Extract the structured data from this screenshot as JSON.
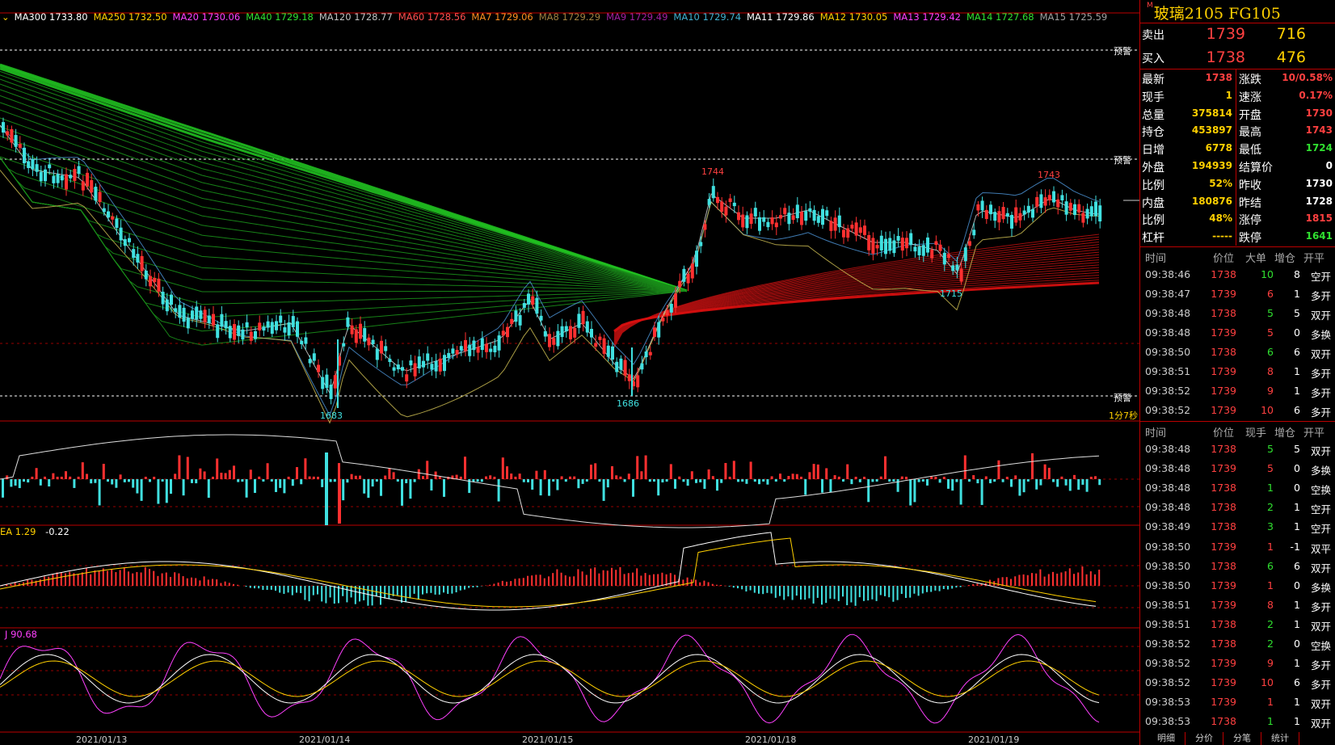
{
  "ma_legend": [
    {
      "label": "MA300 1733.80",
      "color": "#ffffff"
    },
    {
      "label": "MA250 1732.50",
      "color": "#ffd000"
    },
    {
      "label": "MA20 1730.06",
      "color": "#ff40ff"
    },
    {
      "label": "MA40 1729.18",
      "color": "#30e030"
    },
    {
      "label": "MA120 1728.77",
      "color": "#c0c0c0"
    },
    {
      "label": "MA60 1728.56",
      "color": "#ff5050"
    },
    {
      "label": "MA7 1729.06",
      "color": "#ff9020"
    },
    {
      "label": "MA8 1729.29",
      "color": "#a08040"
    },
    {
      "label": "MA9 1729.49",
      "color": "#a020a0"
    },
    {
      "label": "MA10 1729.74",
      "color": "#40b0d0"
    },
    {
      "label": "MA11 1729.86",
      "color": "#ffffff"
    },
    {
      "label": "MA12 1730.05",
      "color": "#ffd000"
    },
    {
      "label": "MA13 1729.42",
      "color": "#ff40ff"
    },
    {
      "label": "MA14 1727.68",
      "color": "#30e030"
    },
    {
      "label": "MA15 1725.59",
      "color": "#a0a0a0"
    }
  ],
  "warn_label": "预警",
  "price_marks": {
    "high1": "1744",
    "high2": "1743",
    "low1": "1683",
    "low2": "1686",
    "low3": "1715"
  },
  "period_label": "1分7秒",
  "macd_label": {
    "prefix": "EA",
    "value": "1.29",
    "value2": "-0.22"
  },
  "kdj_label": {
    "prefix": "J",
    "value": "90.68"
  },
  "dates": [
    "2021/01/13",
    "2021/01/14",
    "2021/01/15",
    "2021/01/18",
    "2021/01/19"
  ],
  "quote": {
    "prefix": "M",
    "title": "玻璃2105  FG105",
    "sell": {
      "label": "卖出",
      "price": "1739",
      "volume": "716"
    },
    "buy": {
      "label": "买入",
      "price": "1738",
      "volume": "476"
    },
    "left_stats": [
      {
        "k": "最新",
        "v": "1738",
        "color": "#ff4040"
      },
      {
        "k": "现手",
        "v": "1",
        "color": "#ffd000"
      },
      {
        "k": "总量",
        "v": "375814",
        "color": "#ffd000"
      },
      {
        "k": "持仓",
        "v": "453897",
        "color": "#ffd000"
      },
      {
        "k": "日增",
        "v": "6778",
        "color": "#ffd000"
      },
      {
        "k": "外盘",
        "v": "194939",
        "color": "#ffd000"
      },
      {
        "k": "比例",
        "v": "52%",
        "color": "#ffd000"
      },
      {
        "k": "内盘",
        "v": "180876",
        "color": "#ffd000"
      },
      {
        "k": "比例",
        "v": "48%",
        "color": "#ffd000"
      },
      {
        "k": "杠杆",
        "v": "-----",
        "color": "#ffd000"
      }
    ],
    "right_stats": [
      {
        "k": "涨跌",
        "v": "10/0.58%",
        "color": "#ff4040"
      },
      {
        "k": "速涨",
        "v": "0.17%",
        "color": "#ff4040"
      },
      {
        "k": "开盘",
        "v": "1730",
        "color": "#ff4040"
      },
      {
        "k": "最高",
        "v": "1743",
        "color": "#ff4040"
      },
      {
        "k": "最低",
        "v": "1724",
        "color": "#30e030"
      },
      {
        "k": "结算价",
        "v": "0",
        "color": "#ffffff"
      },
      {
        "k": "昨收",
        "v": "1730",
        "color": "#ffffff"
      },
      {
        "k": "昨结",
        "v": "1728",
        "color": "#ffffff"
      },
      {
        "k": "涨停",
        "v": "1815",
        "color": "#ff4040"
      },
      {
        "k": "跌停",
        "v": "1641",
        "color": "#30e030"
      }
    ]
  },
  "trades_header_big": {
    "time": "时间",
    "price": "价位",
    "big": "大单",
    "inc": "增仓",
    "type": "开平"
  },
  "trades_big": [
    {
      "time": "09:38:46",
      "price": "1738",
      "big": "10",
      "inc": "8",
      "type": "空开",
      "pc": "#ff4040",
      "bc": "#30e030"
    },
    {
      "time": "09:38:47",
      "price": "1739",
      "big": "6",
      "inc": "1",
      "type": "多开",
      "pc": "#ff4040",
      "bc": "#ff4040"
    },
    {
      "time": "09:38:48",
      "price": "1738",
      "big": "5",
      "inc": "5",
      "type": "双开",
      "pc": "#ff4040",
      "bc": "#30e030"
    },
    {
      "time": "09:38:48",
      "price": "1739",
      "big": "5",
      "inc": "0",
      "type": "多换",
      "pc": "#ff4040",
      "bc": "#ff4040"
    },
    {
      "time": "09:38:50",
      "price": "1738",
      "big": "6",
      "inc": "6",
      "type": "双开",
      "pc": "#ff4040",
      "bc": "#30e030"
    },
    {
      "time": "09:38:51",
      "price": "1739",
      "big": "8",
      "inc": "1",
      "type": "多开",
      "pc": "#ff4040",
      "bc": "#ff4040"
    },
    {
      "time": "09:38:52",
      "price": "1739",
      "big": "9",
      "inc": "1",
      "type": "多开",
      "pc": "#ff4040",
      "bc": "#ff4040"
    },
    {
      "time": "09:38:52",
      "price": "1739",
      "big": "10",
      "inc": "6",
      "type": "多开",
      "pc": "#ff4040",
      "bc": "#ff4040"
    }
  ],
  "trades_header": {
    "time": "时间",
    "price": "价位",
    "big": "现手",
    "inc": "增仓",
    "type": "开平"
  },
  "trades": [
    {
      "time": "09:38:48",
      "price": "1738",
      "big": "5",
      "inc": "5",
      "type": "双开",
      "pc": "#ff4040",
      "bc": "#30e030"
    },
    {
      "time": "09:38:48",
      "price": "1739",
      "big": "5",
      "inc": "0",
      "type": "多换",
      "pc": "#ff4040",
      "bc": "#ff4040"
    },
    {
      "time": "09:38:48",
      "price": "1738",
      "big": "1",
      "inc": "0",
      "type": "空换",
      "pc": "#ff4040",
      "bc": "#30e030"
    },
    {
      "time": "09:38:48",
      "price": "1738",
      "big": "2",
      "inc": "1",
      "type": "空开",
      "pc": "#ff4040",
      "bc": "#30e030"
    },
    {
      "time": "09:38:49",
      "price": "1738",
      "big": "3",
      "inc": "1",
      "type": "空开",
      "pc": "#ff4040",
      "bc": "#30e030"
    },
    {
      "time": "09:38:50",
      "price": "1739",
      "big": "1",
      "inc": "-1",
      "type": "双平",
      "pc": "#ff4040",
      "bc": "#ff4040"
    },
    {
      "time": "09:38:50",
      "price": "1738",
      "big": "6",
      "inc": "6",
      "type": "双开",
      "pc": "#ff4040",
      "bc": "#30e030"
    },
    {
      "time": "09:38:50",
      "price": "1739",
      "big": "1",
      "inc": "0",
      "type": "多换",
      "pc": "#ff4040",
      "bc": "#ff4040"
    },
    {
      "time": "09:38:51",
      "price": "1739",
      "big": "8",
      "inc": "1",
      "type": "多开",
      "pc": "#ff4040",
      "bc": "#ff4040"
    },
    {
      "time": "09:38:51",
      "price": "1738",
      "big": "2",
      "inc": "1",
      "type": "双开",
      "pc": "#ff4040",
      "bc": "#30e030"
    },
    {
      "time": "09:38:52",
      "price": "1738",
      "big": "2",
      "inc": "0",
      "type": "空换",
      "pc": "#ff4040",
      "bc": "#30e030"
    },
    {
      "time": "09:38:52",
      "price": "1739",
      "big": "9",
      "inc": "1",
      "type": "多开",
      "pc": "#ff4040",
      "bc": "#ff4040"
    },
    {
      "time": "09:38:52",
      "price": "1739",
      "big": "10",
      "inc": "6",
      "type": "多开",
      "pc": "#ff4040",
      "bc": "#ff4040"
    },
    {
      "time": "09:38:53",
      "price": "1739",
      "big": "1",
      "inc": "1",
      "type": "双开",
      "pc": "#ff4040",
      "bc": "#ff4040"
    },
    {
      "time": "09:38:53",
      "price": "1738",
      "big": "1",
      "inc": "1",
      "type": "双开",
      "pc": "#ff4040",
      "bc": "#30e030"
    }
  ],
  "tabs": [
    "明细",
    "分价",
    "分笔",
    "统计"
  ],
  "colors": {
    "up": "#ff3030",
    "down": "#40e0e0",
    "grid": "#b00000",
    "green_ma": "#20c020",
    "red_ma": "#d01010"
  }
}
